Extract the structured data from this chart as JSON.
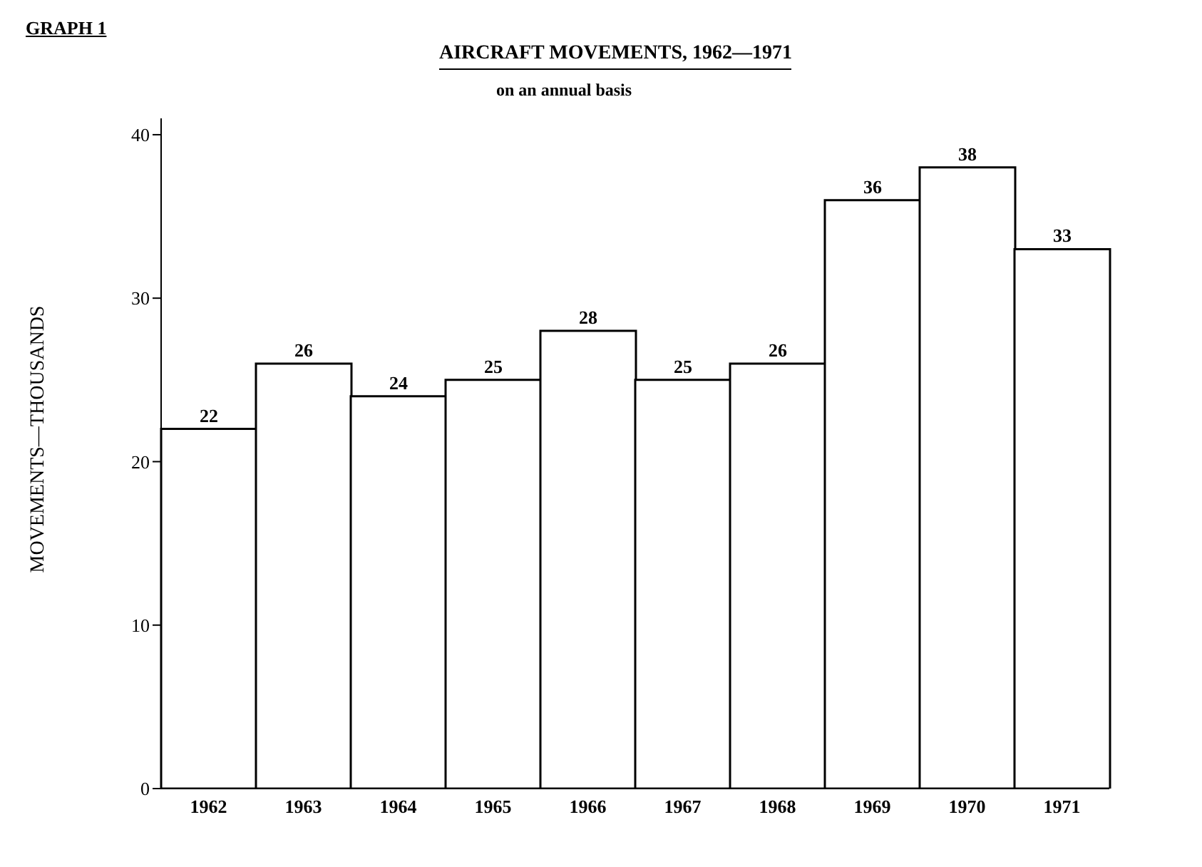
{
  "chart_data": {
    "type": "bar",
    "title": "AIRCRAFT MOVEMENTS, 1962—1971",
    "subtitle": "on an annual basis",
    "ylabel": "MOVEMENTS—THOUSANDS",
    "annotations": [
      "GRAPH 1"
    ],
    "categories": [
      "1962",
      "1963",
      "1964",
      "1965",
      "1966",
      "1967",
      "1968",
      "1969",
      "1970",
      "1971"
    ],
    "values": [
      22,
      26,
      24,
      25,
      28,
      25,
      26,
      36,
      38,
      33
    ],
    "color": "#ffffff",
    "ylim": [
      0,
      41
    ],
    "yticks": [
      0,
      10,
      20,
      30,
      40
    ],
    "grid": false,
    "data_labels": true
  }
}
